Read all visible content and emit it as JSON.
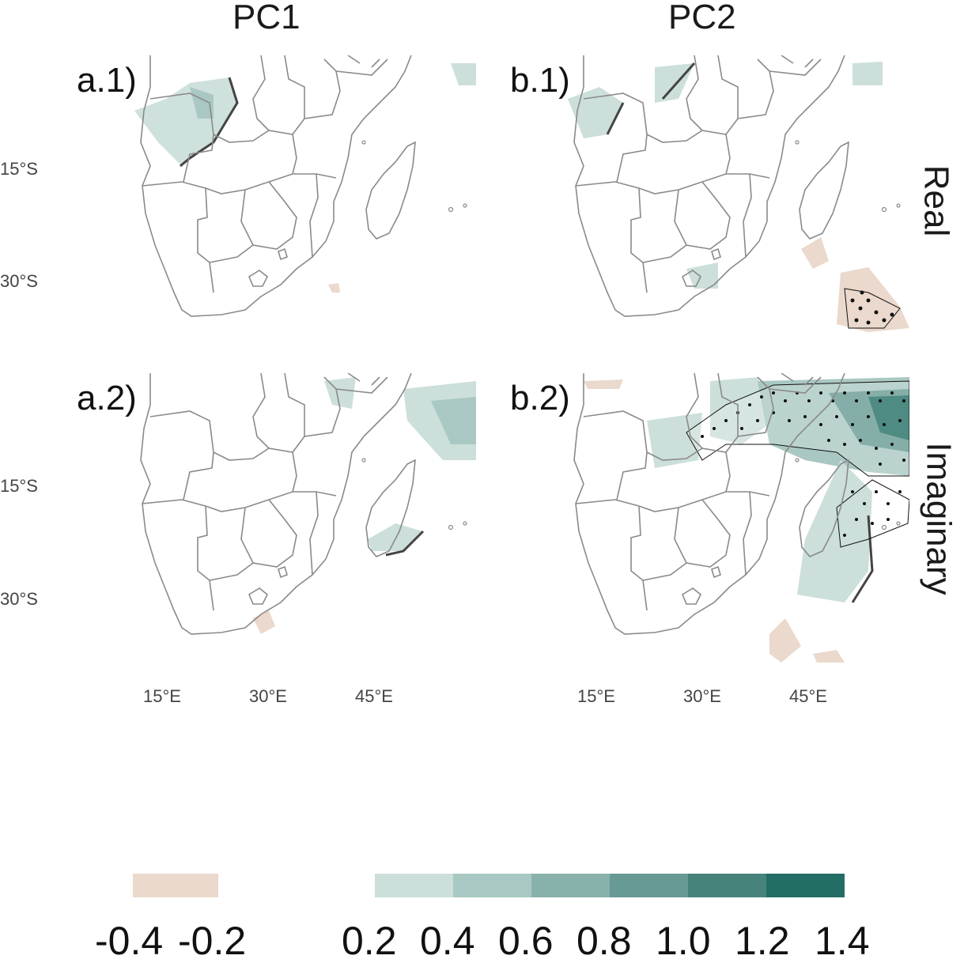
{
  "columns": [
    "PC1",
    "PC2"
  ],
  "rows": [
    "Real",
    "Imaginary"
  ],
  "panels": [
    {
      "label": "a.1)",
      "column": "PC1",
      "row": "Real"
    },
    {
      "label": "b.1)",
      "column": "PC2",
      "row": "Real"
    },
    {
      "label": "a.2)",
      "column": "PC1",
      "row": "Imaginary"
    },
    {
      "label": "b.2)",
      "column": "PC2",
      "row": "Imaginary"
    }
  ],
  "axes": {
    "lat_ticks": [
      "15°S",
      "30°S"
    ],
    "lon_ticks": [
      "15°E",
      "30°E",
      "45°E"
    ]
  },
  "colorbar": {
    "negative_labels": [
      "-0.4",
      "-0.2"
    ],
    "positive_labels": [
      "0.2",
      "0.4",
      "0.6",
      "0.8",
      "1.0",
      "1.2",
      "1.4"
    ],
    "negative_colors": [
      "#ead9cc"
    ],
    "positive_colors": [
      "#ccdfdb",
      "#aac8c3",
      "#89b1ab",
      "#679a93",
      "#46847b",
      "#226e64"
    ]
  },
  "colors": {
    "border": "#8a8a8a",
    "stippling": "#111111"
  }
}
